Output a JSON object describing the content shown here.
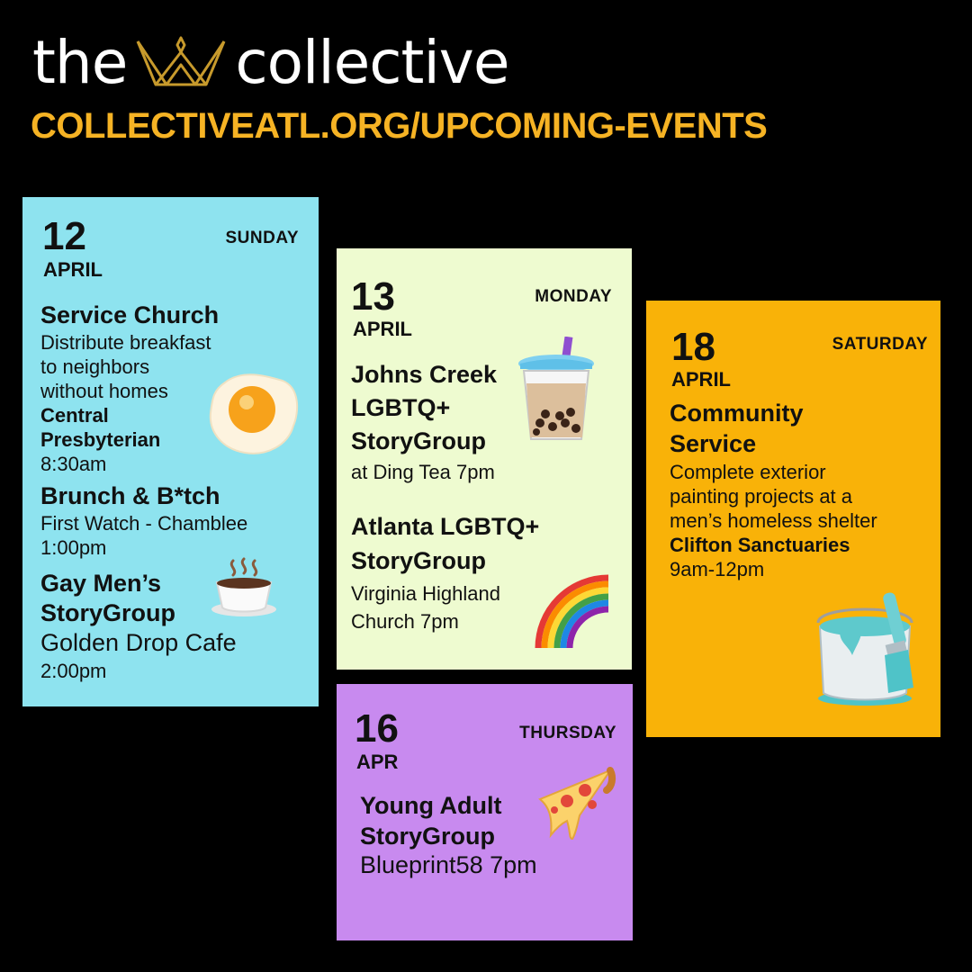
{
  "brand": {
    "left_word": "the",
    "right_word": "collective",
    "logo_icon": "crown-icon"
  },
  "url": "COLLECTIVEATL.ORG/UPCOMING-EVENTS",
  "colors": {
    "background": "#000000",
    "accent": "#F6B324",
    "card_1": "#8EE3EF",
    "card_2": "#EEFBD0",
    "card_3": "#F9B208",
    "card_4": "#C88AEF"
  },
  "cards": [
    {
      "day": "12",
      "month": "APRIL",
      "weekday": "SUNDAY",
      "events": [
        {
          "title": "Service Church",
          "desc_1": "Distribute breakfast",
          "desc_2": "to neighbors",
          "desc_3": "without homes",
          "venue_1": "Central",
          "venue_2": "Presbyterian",
          "time": "8:30am",
          "icon": "fried-egg-icon"
        },
        {
          "title": "Brunch & B*tch",
          "venue": "First Watch - Chamblee",
          "time": "1:00pm"
        },
        {
          "title_1": "Gay Men’s",
          "title_2": "StoryGroup",
          "venue": "Golden Drop Cafe",
          "time": "2:00pm",
          "icon": "coffee-icon"
        }
      ]
    },
    {
      "day": "13",
      "month": "APRIL",
      "weekday": "MONDAY",
      "events": [
        {
          "title_1": "Johns Creek",
          "title_2": "LGBTQ+",
          "title_3": "StoryGroup",
          "detail": "at Ding Tea 7pm",
          "icon": "bubble-tea-icon"
        },
        {
          "title_1": "Atlanta LGBTQ+",
          "title_2": "StoryGroup",
          "detail_1": "Virginia Highland",
          "detail_2": "Church 7pm",
          "icon": "rainbow-icon"
        }
      ]
    },
    {
      "day": "18",
      "month": "APRIL",
      "weekday": "SATURDAY",
      "events": [
        {
          "title_1": "Community",
          "title_2": "Service",
          "desc_1": "Complete exterior",
          "desc_2": "painting projects at a",
          "desc_3": "men’s homeless shelter",
          "venue": "Clifton Sanctuaries",
          "time": "9am-12pm",
          "icon": "paint-bucket-icon"
        }
      ]
    },
    {
      "day": "16",
      "month": "APR",
      "weekday": "THURSDAY",
      "events": [
        {
          "title_1": "Young Adult",
          "title_2": "StoryGroup",
          "detail": "Blueprint58 7pm",
          "icon": "pizza-icon"
        }
      ]
    }
  ]
}
